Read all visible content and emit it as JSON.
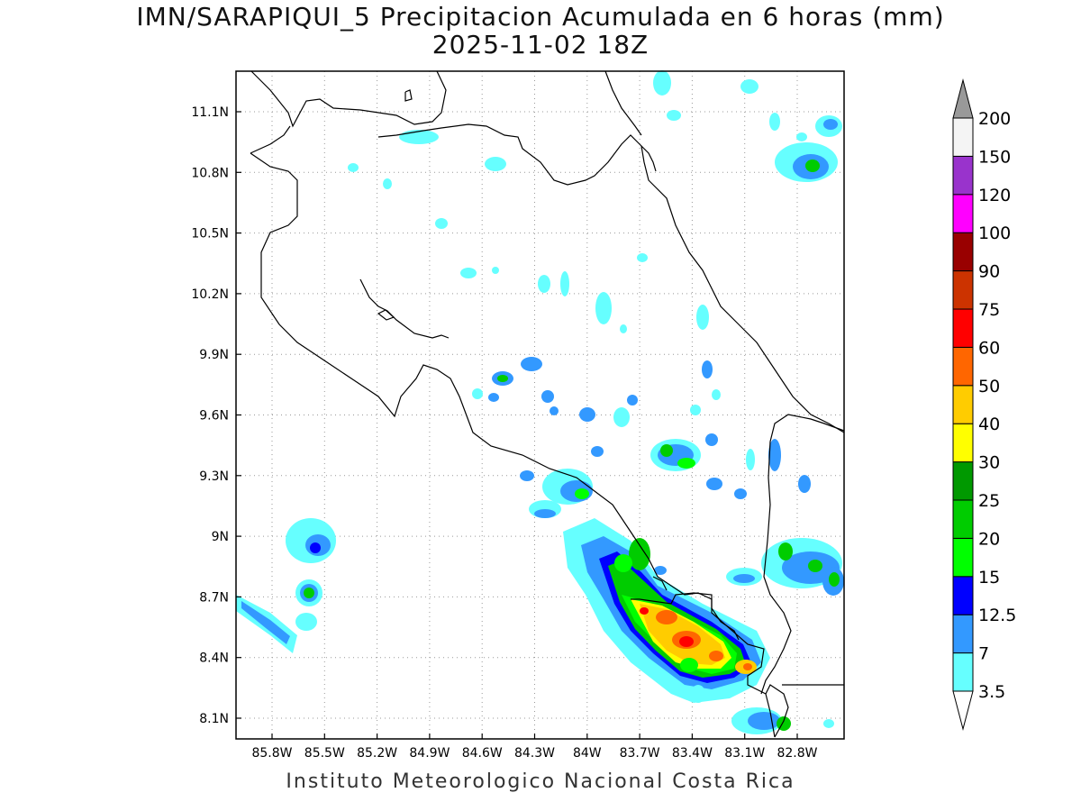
{
  "title": {
    "line1": "IMN/SARAPIQUI_5 Precipitacion Acumulada en 6 horas (mm)",
    "line2": "2025-11-02 18Z"
  },
  "credit": "Instituto Meteorologico Nacional Costa Rica",
  "axes": {
    "lat_labels": [
      "11.1N",
      "10.8N",
      "10.5N",
      "10.2N",
      "9.9N",
      "9.6N",
      "9.3N",
      "9N",
      "8.7N",
      "8.4N",
      "8.1N"
    ],
    "lon_labels": [
      "85.8W",
      "85.5W",
      "85.2W",
      "84.9W",
      "84.6W",
      "84.3W",
      "84W",
      "83.7W",
      "83.4W",
      "83.1W",
      "82.8W"
    ],
    "grid": "dotted"
  },
  "legend": {
    "levels": [
      {
        "value": "3.5",
        "color": "#66ffff"
      },
      {
        "value": "7",
        "color": "#3399ff"
      },
      {
        "value": "12.5",
        "color": "#0000ff"
      },
      {
        "value": "15",
        "color": "#00ff00"
      },
      {
        "value": "20",
        "color": "#00cc00"
      },
      {
        "value": "25",
        "color": "#009900"
      },
      {
        "value": "30",
        "color": "#ffff00"
      },
      {
        "value": "40",
        "color": "#ffcc00"
      },
      {
        "value": "50",
        "color": "#ff6600"
      },
      {
        "value": "60",
        "color": "#ff0000"
      },
      {
        "value": "75",
        "color": "#cc3300"
      },
      {
        "value": "90",
        "color": "#990000"
      },
      {
        "value": "100",
        "color": "#ff00ff"
      },
      {
        "value": "120",
        "color": "#9933cc"
      },
      {
        "value": "150",
        "color": "#f4f4f4"
      },
      {
        "value": "200",
        "color": "#999999"
      }
    ]
  }
}
